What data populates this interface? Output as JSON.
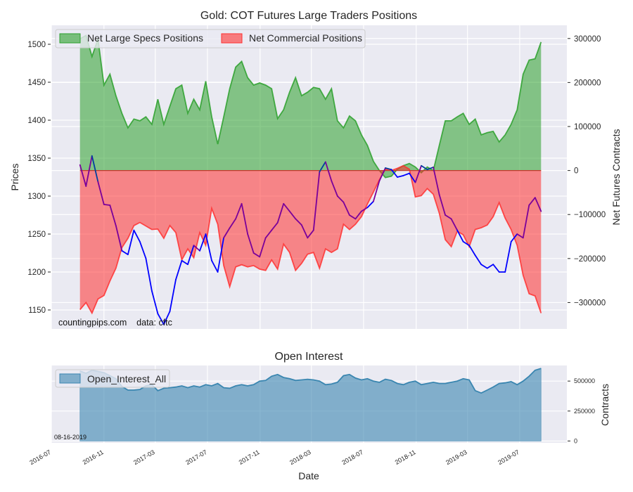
{
  "chart_data": [
    {
      "type": "area",
      "title": "Gold: COT Futures Large Traders Positions",
      "ylabel": "Prices",
      "ylabel_right": "Net Futures Contracts",
      "ylim": [
        1125,
        1525
      ],
      "ylim_right": [
        -360000,
        330000
      ],
      "yticks": [
        1150,
        1200,
        1250,
        1300,
        1350,
        1400,
        1450,
        1500
      ],
      "yticks_right": [
        -300000,
        -200000,
        -100000,
        0,
        100000,
        200000,
        300000
      ],
      "ytick_labels_right": [
        "−300000",
        "−200000",
        "−100000",
        "0",
        "100000",
        "200000",
        "300000"
      ],
      "grid": true,
      "legend_position": "top-left",
      "legend": [
        "Net Large Specs Positions",
        "Net Commercial Positions"
      ],
      "start_date": "2016-09-06",
      "step_weeks": 2,
      "series": [
        {
          "name": "Net Large Specs Positions",
          "axis": "right",
          "color": "#2ca02c",
          "values": [
            299000,
            307000,
            259000,
            299000,
            194000,
            219000,
            170000,
            130000,
            97000,
            117000,
            113000,
            122000,
            105000,
            162000,
            105000,
            146000,
            186000,
            194000,
            130000,
            162000,
            138000,
            203000,
            122000,
            60000,
            122000,
            186000,
            235000,
            248000,
            211000,
            194000,
            199000,
            194000,
            186000,
            118000,
            138000,
            178000,
            211000,
            170000,
            178000,
            189000,
            186000,
            162000,
            186000,
            113000,
            97000,
            124000,
            113000,
            81000,
            57000,
            21000,
            0,
            -16000,
            -13000,
            3000,
            11000,
            16000,
            8000,
            -5000,
            8000,
            0,
            57000,
            113000,
            113000,
            122000,
            130000,
            105000,
            117000,
            81000,
            86000,
            89000,
            65000,
            81000,
            105000,
            138000,
            219000,
            251000,
            254000,
            292000
          ]
        },
        {
          "name": "Net Commercial Positions",
          "axis": "right",
          "color": "#ff3030",
          "values": [
            -316000,
            -300000,
            -324000,
            -292000,
            -284000,
            -251000,
            -222000,
            -175000,
            -154000,
            -125000,
            -118000,
            -126000,
            -134000,
            -133000,
            -154000,
            -125000,
            -141000,
            -203000,
            -178000,
            -198000,
            -141000,
            -170000,
            -86000,
            -122000,
            -216000,
            -264000,
            -219000,
            -214000,
            -219000,
            -216000,
            -224000,
            -227000,
            -203000,
            -224000,
            -167000,
            -186000,
            -227000,
            -211000,
            -190000,
            -186000,
            -222000,
            -178000,
            -186000,
            -178000,
            -122000,
            -134000,
            -122000,
            -105000,
            -76000,
            -49000,
            -21000,
            3000,
            0,
            5000,
            11000,
            3000,
            -60000,
            -57000,
            -41000,
            -54000,
            -97000,
            -157000,
            -173000,
            -138000,
            -146000,
            -173000,
            -134000,
            -130000,
            -124000,
            -105000,
            -73000,
            -108000,
            -134000,
            -170000,
            -238000,
            -280000,
            -285000,
            -324000
          ]
        },
        {
          "name": "Prices",
          "axis": "left",
          "color_above_zero": "#003f9e",
          "color_below_zero": "#7a009a",
          "color_no_overlap": "#0000ff",
          "values": [
            1341,
            1313,
            1353,
            1319,
            1289,
            1288,
            1261,
            1228,
            1223,
            1255,
            1240,
            1218,
            1175,
            1145,
            1131,
            1148,
            1190,
            1215,
            1210,
            1235,
            1228,
            1250,
            1215,
            1200,
            1245,
            1258,
            1270,
            1290,
            1250,
            1225,
            1220,
            1245,
            1255,
            1265,
            1290,
            1280,
            1270,
            1262,
            1245,
            1255,
            1332,
            1345,
            1320,
            1300,
            1292,
            1275,
            1270,
            1280,
            1285,
            1293,
            1320,
            1337,
            1335,
            1325,
            1327,
            1330,
            1318,
            1340,
            1335,
            1338,
            1302,
            1275,
            1270,
            1255,
            1240,
            1235,
            1222,
            1210,
            1205,
            1210,
            1200,
            1200,
            1240,
            1250,
            1245,
            1288,
            1298,
            1280
          ]
        }
      ],
      "annotations": [
        "countingpips.com    data: cftc"
      ]
    },
    {
      "type": "area",
      "title": "Open Interest",
      "xlabel": "Date",
      "ylabel": "Contracts",
      "ylim": [
        -15000,
        630000
      ],
      "yticks": [
        0,
        250000,
        500000
      ],
      "grid": true,
      "legend_position": "top-left",
      "legend": [
        "Open_Interest_All"
      ],
      "series": [
        {
          "name": "Open_Interest_All",
          "color": "#3a86b0",
          "values": [
            583000,
            565000,
            590000,
            580000,
            570000,
            545000,
            520000,
            455000,
            425000,
            425000,
            430000,
            460000,
            470000,
            420000,
            440000,
            445000,
            450000,
            460000,
            445000,
            460000,
            450000,
            470000,
            460000,
            480000,
            445000,
            440000,
            460000,
            470000,
            460000,
            470000,
            500000,
            505000,
            540000,
            555000,
            530000,
            520000,
            505000,
            510000,
            515000,
            510000,
            500000,
            470000,
            475000,
            490000,
            545000,
            555000,
            525000,
            510000,
            520000,
            500000,
            490000,
            515000,
            505000,
            480000,
            470000,
            490000,
            500000,
            470000,
            480000,
            490000,
            480000,
            480000,
            490000,
            500000,
            520000,
            510000,
            420000,
            400000,
            425000,
            450000,
            480000,
            485000,
            495000,
            470000,
            500000,
            540000,
            590000,
            605000
          ]
        }
      ],
      "xticks": [
        "2016-07",
        "2016-11",
        "2017-03",
        "2017-07",
        "2017-11",
        "2018-03",
        "2018-07",
        "2018-11",
        "2019-03",
        "2019-07"
      ],
      "annotations": [
        "08-16-2019"
      ]
    }
  ]
}
